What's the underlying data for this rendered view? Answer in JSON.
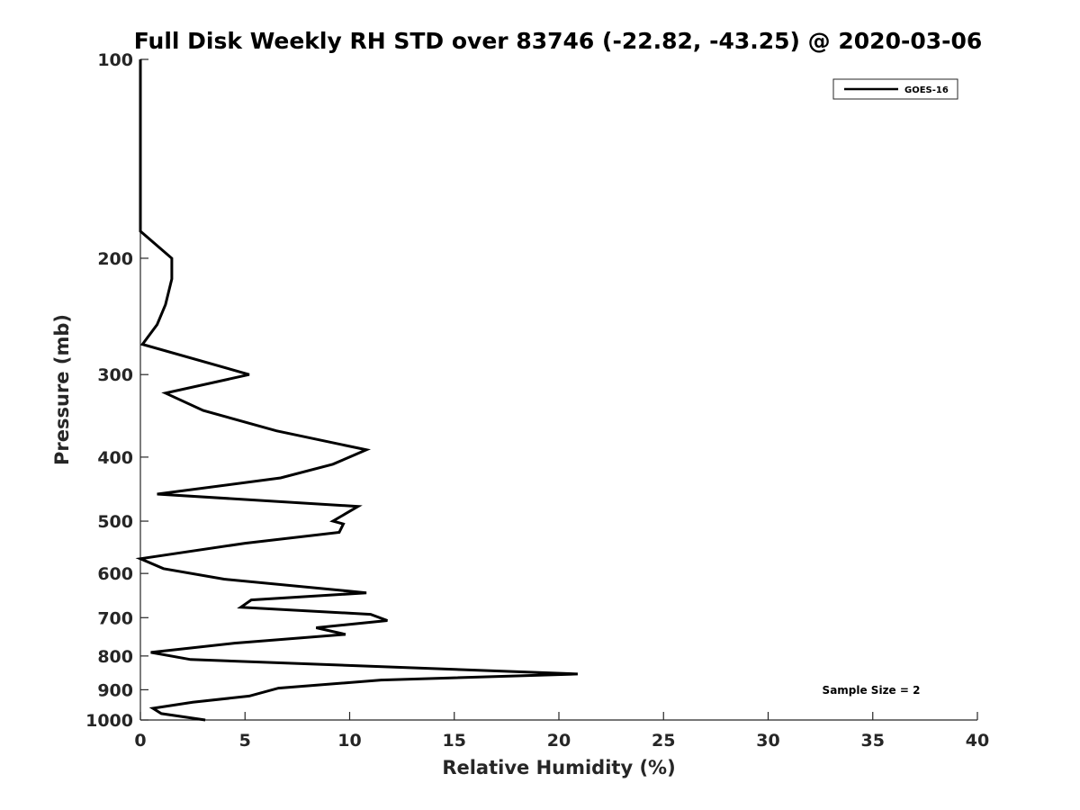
{
  "chart_data": {
    "type": "line",
    "title": "Full Disk Weekly RH STD over 83746 (-22.82, -43.25) @ 2020-03-06",
    "xlabel": "Relative Humidity (%)",
    "ylabel": "Pressure (mb)",
    "xlim": [
      0,
      40
    ],
    "ylim": [
      100,
      1000
    ],
    "yscale": "log",
    "y_reversed": true,
    "xticks": [
      0,
      5,
      10,
      15,
      20,
      25,
      30,
      35,
      40
    ],
    "yticks": [
      100,
      200,
      300,
      400,
      500,
      600,
      700,
      800,
      900,
      1000
    ],
    "grid": false,
    "legend_position": "top-right",
    "annotation": "Sample Size = 2",
    "series": [
      {
        "name": "GOES-16",
        "color": "#000000",
        "x": [
          0,
          0,
          0,
          0,
          1.5,
          1.5,
          1.2,
          0.8,
          0.1,
          5.2,
          1.2,
          3.0,
          6.5,
          10.8,
          9.2,
          6.7,
          0.8,
          10.4,
          9.2,
          9.7,
          9.5,
          5.0,
          0,
          1.1,
          4.0,
          10.8,
          5.3,
          4.8,
          11.0,
          11.8,
          8.4,
          9.8,
          4.5,
          0.5,
          2.4,
          20.9,
          11.5,
          6.6,
          5.2,
          2.5,
          0.6,
          1.0,
          3.1
        ],
        "y": [
          100,
          150,
          175,
          182,
          200,
          215,
          235,
          252,
          270,
          300,
          320,
          340,
          365,
          390,
          410,
          430,
          455,
          475,
          500,
          505,
          520,
          540,
          570,
          590,
          612,
          642,
          658,
          675,
          692,
          707,
          725,
          742,
          765,
          790,
          810,
          852,
          870,
          895,
          920,
          940,
          960,
          978,
          1000
        ]
      }
    ]
  }
}
